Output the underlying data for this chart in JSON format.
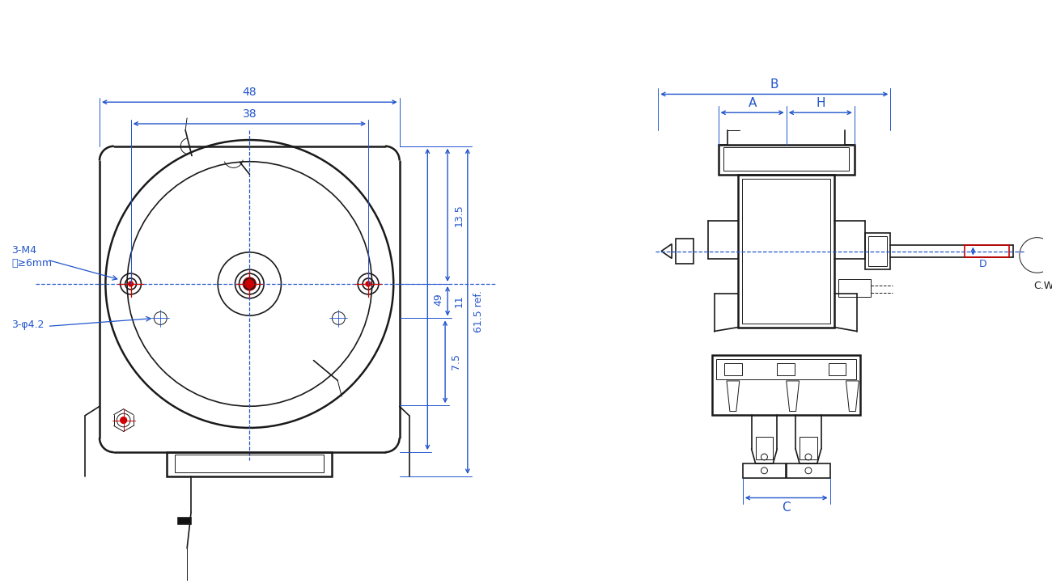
{
  "bg_color": "#ffffff",
  "line_color": "#1a1a1a",
  "dim_color": "#2255cc",
  "red_color": "#cc0000",
  "fig_width": 13.0,
  "fig_height": 7.22,
  "dpi": 100,
  "notes": {
    "note_3M4": "3-M4",
    "note_deep": "深≥6mm",
    "note_3phi": "3-φ4.2",
    "dim_48": "48",
    "dim_38": "38",
    "dim_13_5": "13.5",
    "dim_11": "11",
    "dim_7_5": "7.5",
    "dim_49": "49",
    "dim_61_5": "61.5 ref.",
    "label_B": "B",
    "label_A": "A",
    "label_H": "H",
    "label_C": "C",
    "label_D": "D",
    "label_CW": "C.W"
  }
}
